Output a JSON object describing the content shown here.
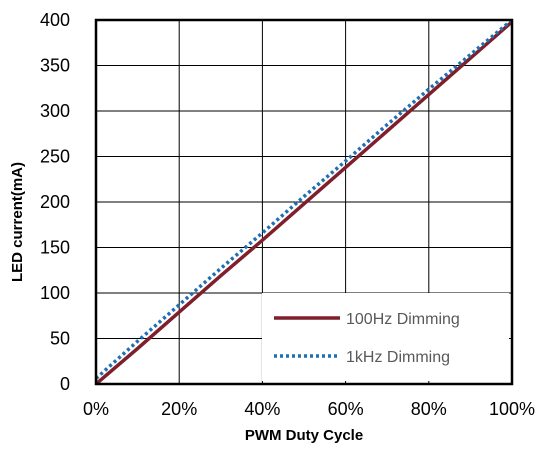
{
  "chart_data": {
    "type": "line",
    "title": "",
    "xlabel": "PWM Duty Cycle",
    "ylabel": "LED current(mA)",
    "xlim": [
      0,
      100
    ],
    "ylim": [
      0,
      400
    ],
    "x_unit": "%",
    "x_ticks": [
      "0%",
      "20%",
      "40%",
      "60%",
      "80%",
      "100%"
    ],
    "y_ticks": [
      "0",
      "50",
      "100",
      "150",
      "200",
      "250",
      "300",
      "350",
      "400"
    ],
    "grid": true,
    "legend_position": "bottom-right",
    "series": [
      {
        "name": "100Hz Dimming",
        "style": "solid",
        "color": "#7f1f2b",
        "x": [
          0,
          10,
          20,
          30,
          40,
          50,
          60,
          70,
          80,
          90,
          100
        ],
        "y": [
          0,
          39,
          79,
          119,
          158,
          198,
          238,
          278,
          318,
          358,
          398
        ]
      },
      {
        "name": "1kHz Dimming",
        "style": "dotted",
        "color": "#1f6fb5",
        "x": [
          0,
          10,
          20,
          30,
          40,
          50,
          60,
          70,
          80,
          90,
          100
        ],
        "y": [
          6,
          47,
          87,
          127,
          166,
          206,
          245,
          285,
          324,
          362,
          400
        ]
      }
    ]
  }
}
